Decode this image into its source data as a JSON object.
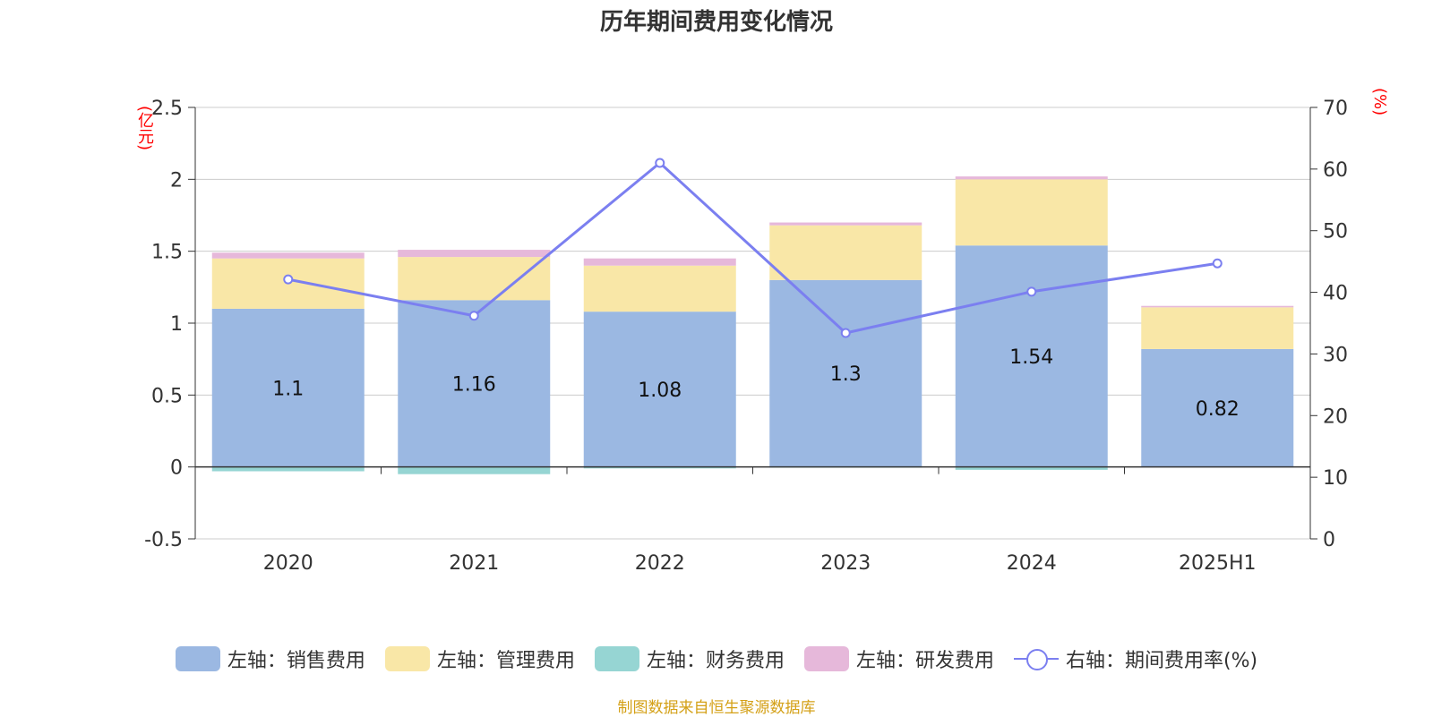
{
  "title": "历年期间费用变化情况",
  "source": "制图数据来自恒生聚源数据库",
  "left_unit": "(亿元)",
  "right_unit": "(%)",
  "legend": [
    {
      "label": "左轴：销售费用",
      "color": "#9bb8e2",
      "kind": "bar"
    },
    {
      "label": "左轴：管理费用",
      "color": "#f9e7a7",
      "kind": "bar"
    },
    {
      "label": "左轴：财务费用",
      "color": "#96d5d3",
      "kind": "bar"
    },
    {
      "label": "左轴：研发费用",
      "color": "#e6b8da",
      "kind": "bar"
    },
    {
      "label": "右轴：期间费用率(%)",
      "color": "#7b7ff0",
      "kind": "line"
    }
  ],
  "chart_data": {
    "type": "bar",
    "title": "历年期间费用变化情况",
    "categories": [
      "2020",
      "2021",
      "2022",
      "2023",
      "2024",
      "2025H1"
    ],
    "left_axis": {
      "unit": "(亿元)",
      "min": -0.5,
      "max": 2.5,
      "ticks": [
        -0.5,
        0,
        0.5,
        1,
        1.5,
        2,
        2.5
      ],
      "tick_labels": [
        "-0.5",
        "0",
        "0.5",
        "1",
        "1.5",
        "2",
        "2.5"
      ]
    },
    "right_axis": {
      "unit": "(%)",
      "min": 0,
      "max": 70,
      "ticks": [
        0,
        10,
        20,
        30,
        40,
        50,
        60,
        70
      ],
      "tick_labels": [
        "0",
        "10",
        "20",
        "30",
        "40",
        "50",
        "60",
        "70"
      ]
    },
    "grid": true,
    "legend_position": "bottom",
    "series": [
      {
        "name": "左轴：销售费用",
        "axis": "left",
        "stack": true,
        "color": "#9bb8e2",
        "values": [
          1.1,
          1.16,
          1.08,
          1.3,
          1.54,
          0.82
        ],
        "data_labels": [
          "1.1",
          "1.16",
          "1.08",
          "1.3",
          "1.54",
          "0.82"
        ]
      },
      {
        "name": "左轴：管理费用",
        "axis": "left",
        "stack": true,
        "color": "#f9e7a7",
        "values": [
          0.35,
          0.3,
          0.32,
          0.38,
          0.46,
          0.29
        ]
      },
      {
        "name": "左轴：财务费用",
        "axis": "left",
        "stack": true,
        "color": "#96d5d3",
        "values": [
          -0.03,
          -0.05,
          -0.01,
          -0.005,
          -0.02,
          -0.003
        ]
      },
      {
        "name": "左轴：研发费用",
        "axis": "left",
        "stack": true,
        "color": "#e6b8da",
        "values": [
          0.04,
          0.05,
          0.05,
          0.02,
          0.02,
          0.01
        ]
      },
      {
        "name": "右轴：期间费用率(%)",
        "axis": "right",
        "type": "line",
        "color": "#7b7ff0",
        "values": [
          42.1,
          36.2,
          61.0,
          33.4,
          40.1,
          44.7
        ]
      }
    ]
  }
}
